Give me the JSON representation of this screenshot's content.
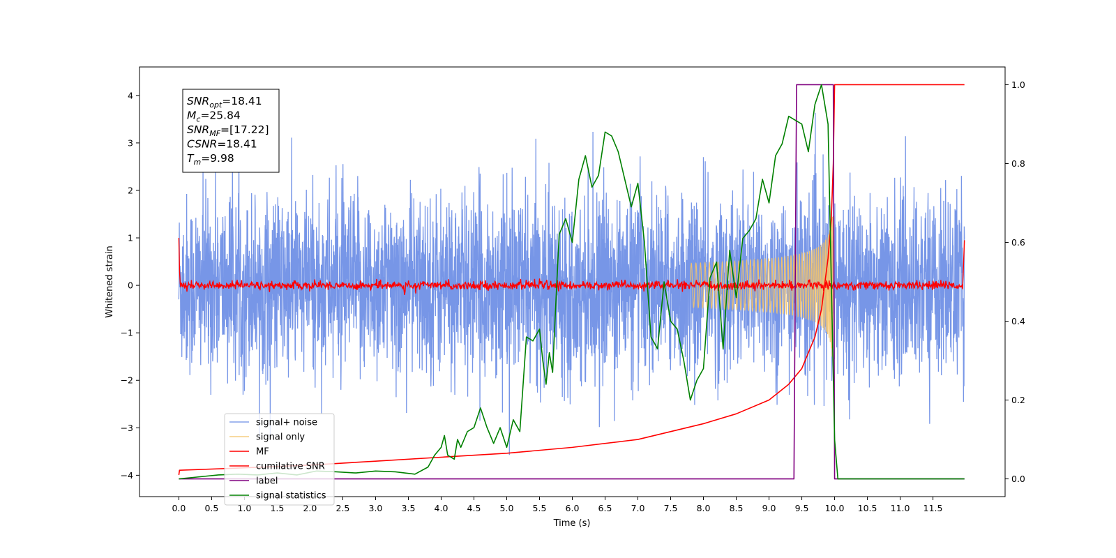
{
  "chart_data": {
    "type": "line",
    "xlabel": "Time (s)",
    "ylabel": "Whitened strain",
    "xlim": [
      -0.6,
      12.6
    ],
    "ylim": [
      -4.45,
      4.6
    ],
    "y2lim": [
      -0.045,
      1.045
    ],
    "xticks": [
      0.0,
      0.5,
      1.0,
      1.5,
      2.0,
      2.5,
      3.0,
      3.5,
      4.0,
      4.5,
      5.0,
      5.5,
      6.0,
      6.5,
      7.0,
      7.5,
      8.0,
      8.5,
      9.0,
      9.5,
      10.0,
      10.5,
      11.0,
      11.5
    ],
    "xtick_labels": [
      "0.0",
      "0.5",
      "1.0",
      "1.5",
      "2.0",
      "2.5",
      "3.0",
      "3.5",
      "4.0",
      "4.5",
      "5.0",
      "5.5",
      "6.0",
      "6.5",
      "7.0",
      "7.5",
      "8.0",
      "8.5",
      "9.0",
      "9.5",
      "10.0",
      "10.5",
      "11.0",
      "11.5"
    ],
    "yticks": [
      -4,
      -3,
      -2,
      -1,
      0,
      1,
      2,
      3,
      4
    ],
    "ytick_labels": [
      "−4",
      "−3",
      "−2",
      "−1",
      "0",
      "1",
      "2",
      "3",
      "4"
    ],
    "y2ticks": [
      0.0,
      0.2,
      0.4,
      0.6,
      0.8,
      1.0
    ],
    "y2tick_labels": [
      "0.0",
      "0.2",
      "0.4",
      "0.6",
      "0.8",
      "1.0"
    ],
    "grid": false,
    "legend_position": "lower-left",
    "annotation": {
      "lines": [
        {
          "base": "SNR",
          "sub": "opt",
          "rest": "=18.41"
        },
        {
          "base": "M",
          "sub": "c",
          "rest": "=25.84"
        },
        {
          "base": "SNR",
          "sub": "MF",
          "rest": "=[17.22]"
        },
        {
          "base": "CSNR",
          "sub": "",
          "rest": "=18.41"
        },
        {
          "base": "T",
          "sub": "m",
          "rest": "=9.98"
        }
      ]
    },
    "series": [
      {
        "name": "signal+ noise",
        "color": "#7090e6",
        "axis": "left",
        "description_range": [
          -3.7,
          4.15
        ],
        "t_start": 0.0,
        "t_end": 11.98
      },
      {
        "name": "signal only",
        "color": "#f5c46a",
        "axis": "left",
        "chirp_merger_time": 9.98,
        "chirp_peak_amplitude": 1.5
      },
      {
        "name": "MF",
        "color": "#ff0000",
        "axis": "left",
        "start_value": 1.0,
        "baseline": 0.0,
        "end_value": 0.95
      },
      {
        "name": "cumilative SNR",
        "color": "#ff0000",
        "axis": "right",
        "x": [
          0.0,
          0.01,
          1.0,
          2.0,
          3.0,
          4.0,
          5.0,
          6.0,
          7.0,
          8.0,
          8.5,
          9.0,
          9.3,
          9.5,
          9.7,
          9.8,
          9.9,
          9.95,
          9.98,
          10.0,
          10.5,
          11.0,
          11.5,
          11.98
        ],
        "y": [
          0.01,
          0.022,
          0.028,
          0.035,
          0.045,
          0.055,
          0.065,
          0.08,
          0.1,
          0.14,
          0.165,
          0.2,
          0.24,
          0.28,
          0.36,
          0.43,
          0.56,
          0.66,
          0.8,
          1.0,
          1.0,
          1.0,
          1.0,
          1.0
        ]
      },
      {
        "name": "label",
        "color": "#800080",
        "axis": "right",
        "x": [
          0.0,
          9.38,
          9.42,
          9.98,
          10.0,
          11.98
        ],
        "y": [
          0.0,
          0.0,
          1.0,
          1.0,
          0.0,
          0.0
        ]
      },
      {
        "name": "signal statistics",
        "color": "#008000",
        "axis": "right",
        "x": [
          0.0,
          0.3,
          0.6,
          0.9,
          1.2,
          1.5,
          1.8,
          2.1,
          2.4,
          2.7,
          3.0,
          3.3,
          3.6,
          3.8,
          3.9,
          4.0,
          4.05,
          4.1,
          4.2,
          4.25,
          4.3,
          4.4,
          4.5,
          4.6,
          4.7,
          4.8,
          4.9,
          5.0,
          5.1,
          5.2,
          5.3,
          5.4,
          5.5,
          5.55,
          5.6,
          5.65,
          5.7,
          5.75,
          5.8,
          5.9,
          6.0,
          6.1,
          6.2,
          6.3,
          6.4,
          6.5,
          6.6,
          6.7,
          6.8,
          6.9,
          7.0,
          7.1,
          7.2,
          7.3,
          7.4,
          7.5,
          7.6,
          7.7,
          7.8,
          7.9,
          8.0,
          8.1,
          8.2,
          8.3,
          8.4,
          8.5,
          8.6,
          8.7,
          8.8,
          8.9,
          9.0,
          9.1,
          9.2,
          9.3,
          9.4,
          9.5,
          9.6,
          9.7,
          9.8,
          9.9,
          9.95,
          10.0,
          10.05,
          10.2,
          10.5,
          11.0,
          11.5,
          11.98
        ],
        "y": [
          0.0,
          0.005,
          0.01,
          0.012,
          0.01,
          0.015,
          0.01,
          0.02,
          0.018,
          0.015,
          0.02,
          0.018,
          0.012,
          0.03,
          0.06,
          0.08,
          0.11,
          0.06,
          0.05,
          0.1,
          0.08,
          0.12,
          0.13,
          0.18,
          0.13,
          0.09,
          0.13,
          0.08,
          0.15,
          0.12,
          0.36,
          0.35,
          0.38,
          0.3,
          0.24,
          0.32,
          0.27,
          0.45,
          0.62,
          0.66,
          0.6,
          0.76,
          0.82,
          0.74,
          0.77,
          0.88,
          0.87,
          0.83,
          0.76,
          0.69,
          0.75,
          0.6,
          0.36,
          0.33,
          0.5,
          0.4,
          0.38,
          0.3,
          0.2,
          0.25,
          0.28,
          0.51,
          0.55,
          0.33,
          0.58,
          0.46,
          0.61,
          0.63,
          0.66,
          0.76,
          0.7,
          0.82,
          0.85,
          0.92,
          0.91,
          0.9,
          0.83,
          0.95,
          1.0,
          0.9,
          0.5,
          0.1,
          0.0,
          0.0,
          0.0,
          0.0,
          0.0,
          0.0
        ]
      }
    ]
  }
}
